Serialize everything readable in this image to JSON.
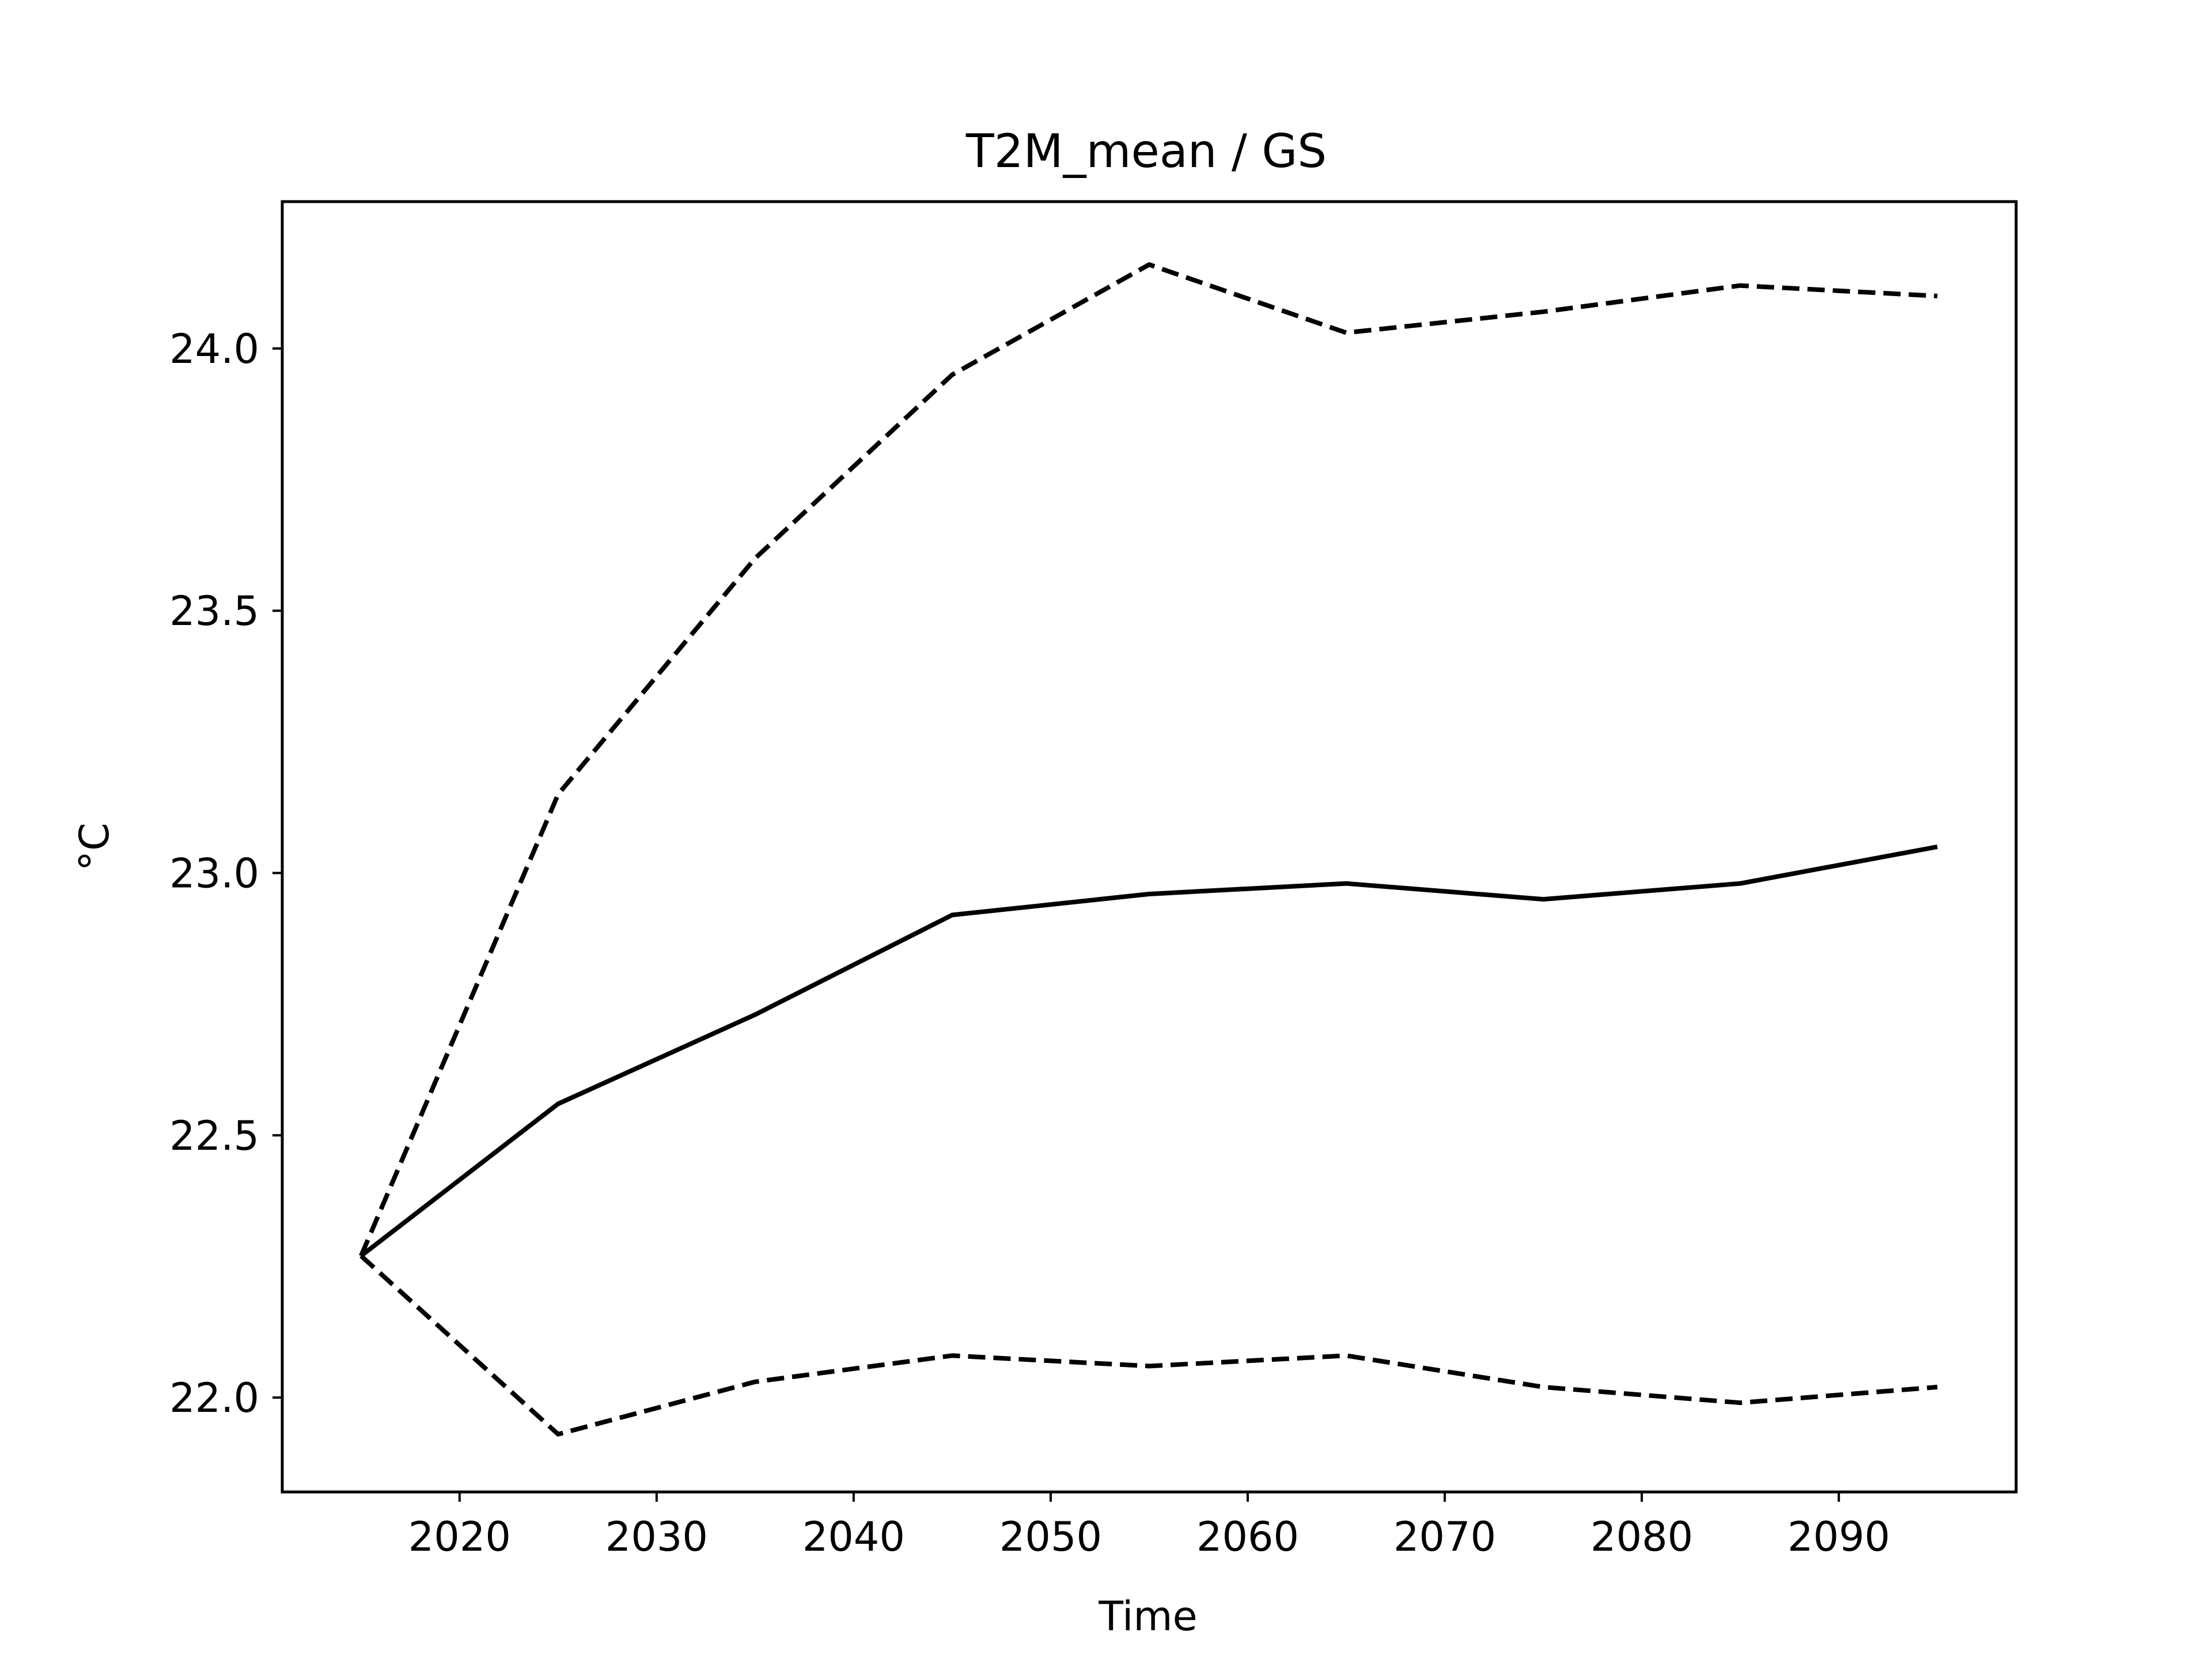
{
  "chart_data": {
    "type": "line",
    "title": "T2M_mean / GS",
    "xlabel": "Time",
    "ylabel": "°C",
    "xlim": [
      2011,
      2099
    ],
    "ylim": [
      21.82,
      24.28
    ],
    "xticks": [
      2020,
      2030,
      2040,
      2050,
      2060,
      2070,
      2080,
      2090
    ],
    "yticks": [
      22.0,
      22.5,
      23.0,
      23.5,
      24.0
    ],
    "ytick_labels": [
      "22.0",
      "22.5",
      "23.0",
      "23.5",
      "24.0"
    ],
    "grid": false,
    "legend": false,
    "x": [
      2015,
      2025,
      2035,
      2045,
      2055,
      2065,
      2075,
      2085,
      2095
    ],
    "series": [
      {
        "style": "dashed",
        "color": "#000000",
        "values": [
          22.27,
          23.15,
          23.6,
          23.95,
          24.16,
          24.03,
          24.07,
          24.12,
          24.1
        ]
      },
      {
        "style": "solid",
        "color": "#000000",
        "values": [
          22.27,
          22.56,
          22.73,
          22.92,
          22.96,
          22.98,
          22.95,
          22.98,
          23.05
        ]
      },
      {
        "style": "dashed",
        "color": "#000000",
        "values": [
          22.27,
          21.93,
          22.03,
          22.08,
          22.06,
          22.08,
          22.02,
          21.99,
          22.02
        ]
      }
    ]
  }
}
